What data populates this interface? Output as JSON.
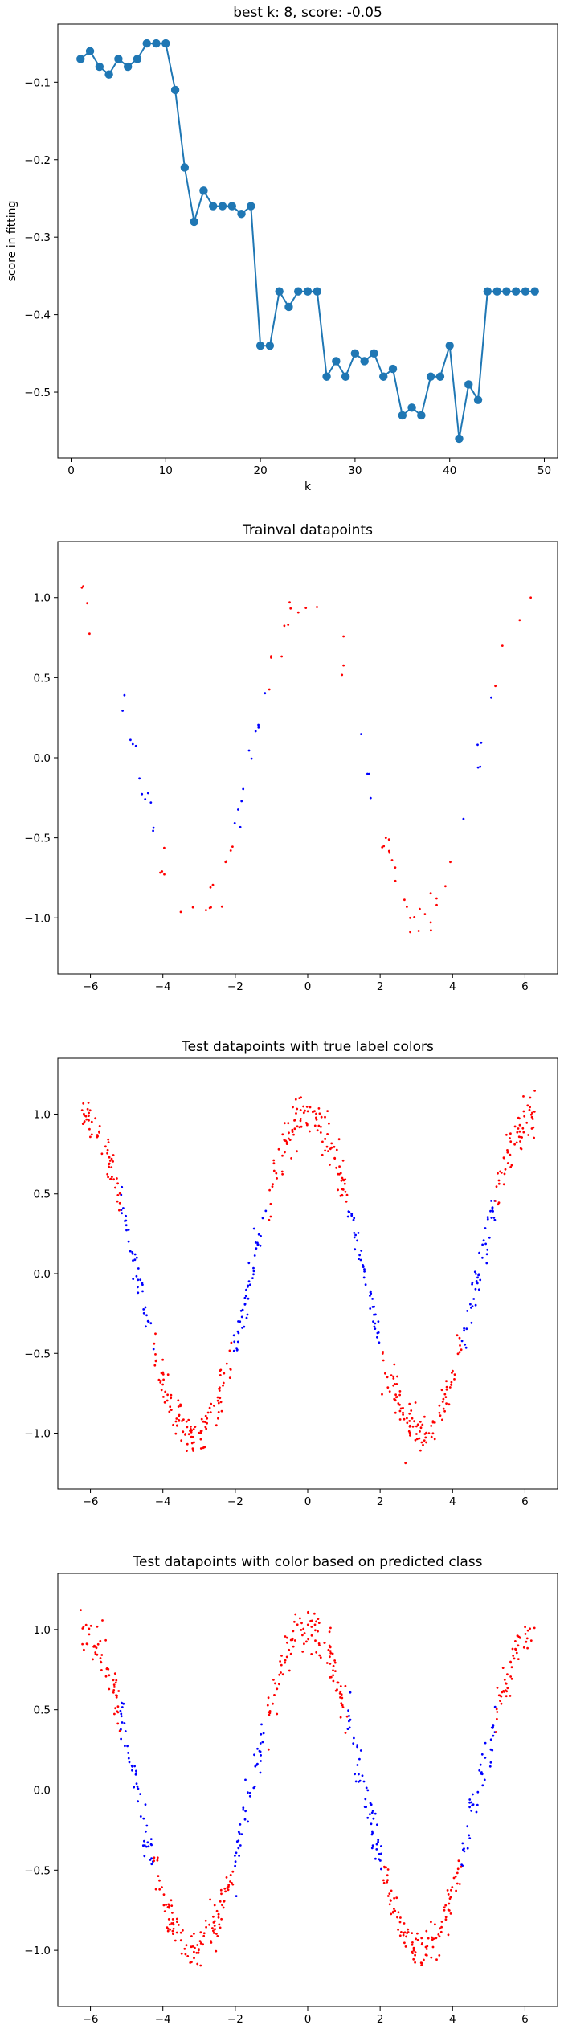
{
  "chart_data": [
    {
      "type": "line",
      "title": "best k: 8, score: -0.05",
      "xlabel": "k",
      "ylabel": "score in fitting",
      "xlim": [
        -1.4,
        51.4
      ],
      "ylim": [
        -0.585,
        -0.025
      ],
      "x_ticks": [
        0,
        10,
        20,
        30,
        40,
        50
      ],
      "y_ticks": [
        -0.5,
        -0.4,
        -0.3,
        -0.2,
        -0.1
      ],
      "grid": false,
      "series": [
        {
          "color": "#1f77b4",
          "marker": "circle",
          "x": [
            1,
            2,
            3,
            4,
            5,
            6,
            7,
            8,
            9,
            10,
            11,
            12,
            13,
            14,
            15,
            16,
            17,
            18,
            19,
            20,
            21,
            22,
            23,
            24,
            25,
            26,
            27,
            28,
            29,
            30,
            31,
            32,
            33,
            34,
            35,
            36,
            37,
            38,
            39,
            40,
            41,
            42,
            43,
            44,
            45,
            46,
            47,
            48,
            49
          ],
          "y": [
            -0.07,
            -0.06,
            -0.08,
            -0.09,
            -0.07,
            -0.08,
            -0.07,
            -0.05,
            -0.05,
            -0.05,
            -0.11,
            -0.21,
            -0.28,
            -0.24,
            -0.26,
            -0.26,
            -0.26,
            -0.27,
            -0.26,
            -0.44,
            -0.44,
            -0.37,
            -0.39,
            -0.37,
            -0.37,
            -0.37,
            -0.48,
            -0.46,
            -0.48,
            -0.45,
            -0.46,
            -0.45,
            -0.48,
            -0.47,
            -0.53,
            -0.52,
            -0.53,
            -0.48,
            -0.48,
            -0.44,
            -0.56,
            -0.49,
            -0.51,
            -0.37,
            -0.37,
            -0.37,
            -0.37,
            -0.37,
            -0.37
          ]
        }
      ]
    },
    {
      "type": "scatter",
      "title": "Trainval datapoints",
      "xlabel": "",
      "ylabel": "",
      "xlim": [
        -6.9,
        6.9
      ],
      "ylim": [
        -1.35,
        1.35
      ],
      "x_ticks": [
        -6,
        -4,
        -2,
        0,
        2,
        4,
        6
      ],
      "y_ticks": [
        -1.0,
        -0.5,
        0.0,
        0.5,
        1.0
      ],
      "grid": false,
      "generator": {
        "count": 95,
        "noise": 0.07,
        "curve": "cos"
      },
      "colors": {
        "class_a": "#ff0000",
        "class_b": "#0000ff"
      }
    },
    {
      "type": "scatter",
      "title": "Test datapoints with true label colors",
      "xlabel": "",
      "ylabel": "",
      "xlim": [
        -6.9,
        6.9
      ],
      "ylim": [
        -1.35,
        1.35
      ],
      "x_ticks": [
        -6,
        -4,
        -2,
        0,
        2,
        4,
        6
      ],
      "y_ticks": [
        -1.0,
        -0.5,
        0.0,
        0.5,
        1.0
      ],
      "grid": false,
      "generator": {
        "count": 620,
        "noise": 0.07,
        "curve": "cos"
      },
      "colors": {
        "class_a": "#ff0000",
        "class_b": "#0000ff"
      }
    },
    {
      "type": "scatter",
      "title": "Test datapoints with color based on predicted class",
      "xlabel": "",
      "ylabel": "",
      "xlim": [
        -6.9,
        6.9
      ],
      "ylim": [
        -1.35,
        1.35
      ],
      "x_ticks": [
        -6,
        -4,
        -2,
        0,
        2,
        4,
        6
      ],
      "y_ticks": [
        -1.0,
        -0.5,
        0.0,
        0.5,
        1.0
      ],
      "grid": false,
      "generator": {
        "count": 620,
        "noise": 0.07,
        "curve": "cos"
      },
      "colors": {
        "class_a": "#ff0000",
        "class_b": "#0000ff"
      }
    }
  ]
}
